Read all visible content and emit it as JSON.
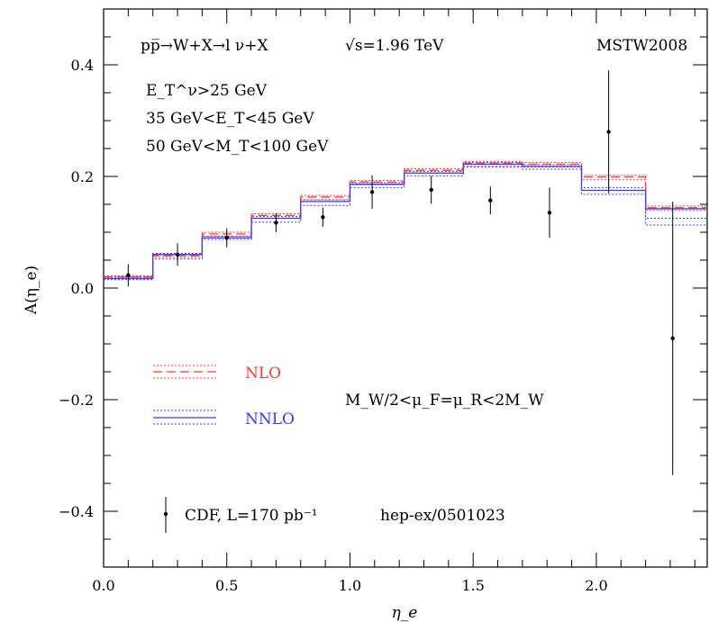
{
  "chart_data": {
    "type": "line",
    "xlabel": "η_e",
    "ylabel": "A(η_e)",
    "xlim": [
      0.0,
      2.45
    ],
    "ylim": [
      -0.5,
      0.5
    ],
    "x_ticks": [
      "0.0",
      "0.5",
      "1.0",
      "1.5",
      "2.0"
    ],
    "y_ticks": [
      "−0.4",
      "−0.2",
      "0.0",
      "0.2",
      "0.4"
    ],
    "annotations": {
      "process_a": "pp̅→W+X→l ν+X",
      "energy": "√s=1.96 TeV",
      "pdf": "MSTW2008",
      "cut1": "E_T^ν>25 GeV",
      "cut2": "35 GeV<E_T<45 GeV",
      "cut3": "50 GeV<M_T<100 GeV",
      "scale": "M_W/2<μ_F=μ_R<2M_W"
    },
    "legend": {
      "nlo": "NLO",
      "nnlo": "NNLO",
      "data": "CDF, L=170 pb⁻¹",
      "ref": "hep-ex/0501023",
      "placement": "left"
    },
    "colors": {
      "nlo": "#ff3b2f",
      "nnlo": "#3a3aff",
      "data": "#000000"
    },
    "bin_edges": [
      0.0,
      0.2,
      0.4,
      0.6,
      0.8,
      1.0,
      1.22,
      1.46,
      1.7,
      1.94,
      2.2,
      2.45
    ],
    "series": [
      {
        "name": "NLO",
        "central": [
          0.02,
          0.058,
          0.097,
          0.13,
          0.163,
          0.19,
          0.211,
          0.224,
          0.222,
          0.199,
          0.144
        ],
        "low": [
          0.018,
          0.055,
          0.093,
          0.125,
          0.158,
          0.185,
          0.206,
          0.219,
          0.217,
          0.194,
          0.139
        ],
        "high": [
          0.022,
          0.06,
          0.1,
          0.133,
          0.166,
          0.193,
          0.214,
          0.227,
          0.225,
          0.202,
          0.147
        ]
      },
      {
        "name": "NNLO",
        "central": [
          0.017,
          0.06,
          0.09,
          0.125,
          0.155,
          0.186,
          0.206,
          0.222,
          0.218,
          0.175,
          0.142
        ],
        "low": [
          0.015,
          0.052,
          0.087,
          0.118,
          0.148,
          0.18,
          0.201,
          0.217,
          0.213,
          0.168,
          0.113
        ],
        "high": [
          0.02,
          0.062,
          0.093,
          0.128,
          0.158,
          0.189,
          0.209,
          0.225,
          0.221,
          0.18,
          0.125
        ]
      }
    ],
    "data_points": [
      {
        "x": 0.1,
        "y": 0.023,
        "err": 0.02
      },
      {
        "x": 0.3,
        "y": 0.06,
        "err": 0.02
      },
      {
        "x": 0.5,
        "y": 0.09,
        "err": 0.017
      },
      {
        "x": 0.7,
        "y": 0.117,
        "err": 0.017
      },
      {
        "x": 0.89,
        "y": 0.127,
        "err": 0.017
      },
      {
        "x": 1.09,
        "y": 0.172,
        "err": 0.03
      },
      {
        "x": 1.33,
        "y": 0.176,
        "err": 0.025
      },
      {
        "x": 1.57,
        "y": 0.157,
        "err": 0.025
      },
      {
        "x": 1.81,
        "y": 0.135,
        "err": 0.045
      },
      {
        "x": 2.05,
        "y": 0.28,
        "err": 0.11
      },
      {
        "x": 2.31,
        "y": -0.09,
        "err": 0.245
      }
    ]
  }
}
